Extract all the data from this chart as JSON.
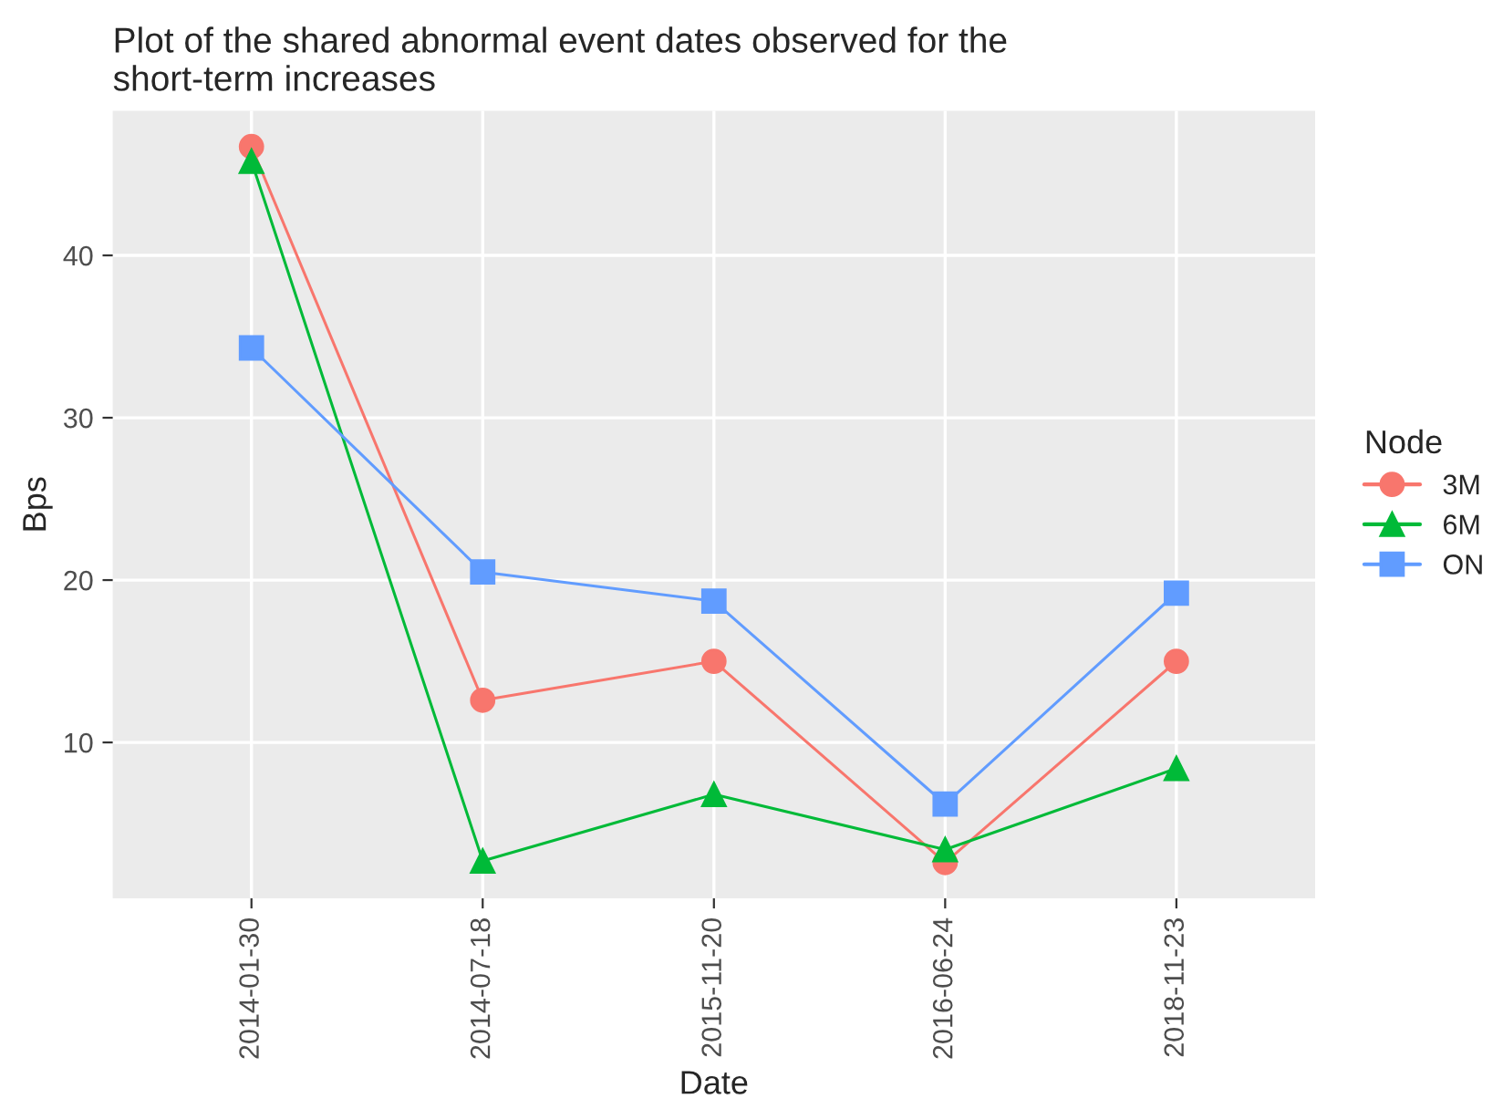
{
  "chart_data": {
    "type": "line",
    "title": "Plot of the shared abnormal event dates observed for the\nshort-term increases",
    "xlabel": "Date",
    "ylabel": "Bps",
    "legend_title": "Node",
    "categories": [
      "2014-01-30",
      "2014-07-18",
      "2015-11-20",
      "2016-06-24",
      "2018-11-23"
    ],
    "series": [
      {
        "name": "3M",
        "color": "#f8766d",
        "marker": "circle",
        "values": [
          46.7,
          12.6,
          15.0,
          2.6,
          15.0
        ]
      },
      {
        "name": "6M",
        "color": "#00ba38",
        "marker": "triangle",
        "values": [
          45.8,
          2.7,
          6.8,
          3.4,
          8.4
        ]
      },
      {
        "name": "ON",
        "color": "#619cff",
        "marker": "square",
        "values": [
          34.3,
          20.5,
          18.7,
          6.2,
          19.2
        ]
      }
    ],
    "ylim": [
      0.4,
      48.9
    ],
    "yticks": [
      10,
      20,
      30,
      40
    ],
    "grid": true,
    "legend": "right"
  }
}
